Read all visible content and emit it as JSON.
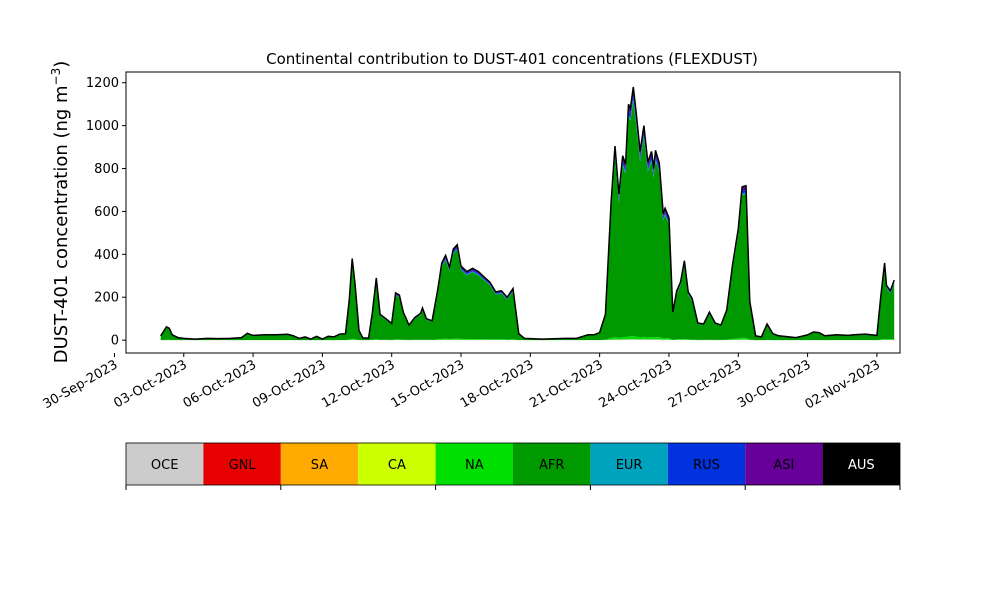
{
  "chart_data": {
    "type": "area",
    "title": "Continental contribution to DUST-401 concentrations (FLEXDUST)",
    "ylabel": "DUST-401 concentration (ng m",
    "ylabel_sup": "−3",
    "ylabel_close": ")",
    "xlabel": "",
    "ylim": [
      -60,
      1250
    ],
    "xlim": [
      "2023-09-30T12:00",
      "2023-11-03T00:00"
    ],
    "yticks": [
      0,
      200,
      400,
      600,
      800,
      1000,
      1200
    ],
    "xticks": [
      {
        "date": "2023-09-30",
        "label": "30-Sep-2023"
      },
      {
        "date": "2023-10-03",
        "label": "03-Oct-2023"
      },
      {
        "date": "2023-10-06",
        "label": "06-Oct-2023"
      },
      {
        "date": "2023-10-09",
        "label": "09-Oct-2023"
      },
      {
        "date": "2023-10-12",
        "label": "12-Oct-2023"
      },
      {
        "date": "2023-10-15",
        "label": "15-Oct-2023"
      },
      {
        "date": "2023-10-18",
        "label": "18-Oct-2023"
      },
      {
        "date": "2023-10-21",
        "label": "21-Oct-2023"
      },
      {
        "date": "2023-10-24",
        "label": "24-Oct-2023"
      },
      {
        "date": "2023-10-27",
        "label": "27-Oct-2023"
      },
      {
        "date": "2023-10-30",
        "label": "30-Oct-2023"
      },
      {
        "date": "2023-11-02",
        "label": "02-Nov-2023"
      }
    ],
    "total_line_color": "#000000",
    "series": [
      {
        "name": "OCE",
        "color": "#cccccc",
        "text_color": "#000000"
      },
      {
        "name": "GNL",
        "color": "#e60000",
        "text_color": "#000000"
      },
      {
        "name": "SA",
        "color": "#ffaa00",
        "text_color": "#000000"
      },
      {
        "name": "CA",
        "color": "#ccff00",
        "text_color": "#000000"
      },
      {
        "name": "NA",
        "color": "#00e000",
        "text_color": "#000000"
      },
      {
        "name": "AFR",
        "color": "#009900",
        "text_color": "#000000"
      },
      {
        "name": "EUR",
        "color": "#00a3bd",
        "text_color": "#000000"
      },
      {
        "name": "RUS",
        "color": "#0033dd",
        "text_color": "#000000"
      },
      {
        "name": "ASI",
        "color": "#660099",
        "text_color": "#000000"
      },
      {
        "name": "AUS",
        "color": "#000000",
        "text_color": "#ffffff"
      }
    ],
    "total": [
      [
        "2023-10-02T00:00",
        20
      ],
      [
        "2023-10-02T03:00",
        40
      ],
      [
        "2023-10-02T06:00",
        62
      ],
      [
        "2023-10-02T09:00",
        55
      ],
      [
        "2023-10-02T12:00",
        25
      ],
      [
        "2023-10-02T18:00",
        12
      ],
      [
        "2023-10-03T00:00",
        8
      ],
      [
        "2023-10-03T12:00",
        5
      ],
      [
        "2023-10-04T00:00",
        8
      ],
      [
        "2023-10-04T12:00",
        7
      ],
      [
        "2023-10-05T00:00",
        8
      ],
      [
        "2023-10-05T12:00",
        12
      ],
      [
        "2023-10-05T18:00",
        32
      ],
      [
        "2023-10-06T00:00",
        22
      ],
      [
        "2023-10-06T12:00",
        25
      ],
      [
        "2023-10-07T00:00",
        25
      ],
      [
        "2023-10-07T12:00",
        27
      ],
      [
        "2023-10-07T18:00",
        20
      ],
      [
        "2023-10-08T00:00",
        8
      ],
      [
        "2023-10-08T06:00",
        15
      ],
      [
        "2023-10-08T12:00",
        5
      ],
      [
        "2023-10-08T18:00",
        18
      ],
      [
        "2023-10-09T00:00",
        5
      ],
      [
        "2023-10-09T06:00",
        18
      ],
      [
        "2023-10-09T12:00",
        15
      ],
      [
        "2023-10-09T18:00",
        28
      ],
      [
        "2023-10-10T00:00",
        30
      ],
      [
        "2023-10-10T04:00",
        190
      ],
      [
        "2023-10-10T07:00",
        380
      ],
      [
        "2023-10-10T10:00",
        260
      ],
      [
        "2023-10-10T14:00",
        45
      ],
      [
        "2023-10-10T18:00",
        10
      ],
      [
        "2023-10-11T00:00",
        10
      ],
      [
        "2023-10-11T04:00",
        130
      ],
      [
        "2023-10-11T08:00",
        290
      ],
      [
        "2023-10-11T12:00",
        120
      ],
      [
        "2023-10-11T18:00",
        100
      ],
      [
        "2023-10-12T00:00",
        78
      ],
      [
        "2023-10-12T04:00",
        220
      ],
      [
        "2023-10-12T08:00",
        210
      ],
      [
        "2023-10-12T12:00",
        130
      ],
      [
        "2023-10-12T18:00",
        70
      ],
      [
        "2023-10-13T00:00",
        105
      ],
      [
        "2023-10-13T06:00",
        125
      ],
      [
        "2023-10-13T08:00",
        150
      ],
      [
        "2023-10-13T12:00",
        100
      ],
      [
        "2023-10-13T18:00",
        90
      ],
      [
        "2023-10-14T00:00",
        240
      ],
      [
        "2023-10-14T04:00",
        360
      ],
      [
        "2023-10-14T08:00",
        395
      ],
      [
        "2023-10-14T12:00",
        340
      ],
      [
        "2023-10-14T16:00",
        425
      ],
      [
        "2023-10-14T20:00",
        445
      ],
      [
        "2023-10-15T00:00",
        345
      ],
      [
        "2023-10-15T06:00",
        320
      ],
      [
        "2023-10-15T12:00",
        335
      ],
      [
        "2023-10-15T18:00",
        320
      ],
      [
        "2023-10-16T00:00",
        295
      ],
      [
        "2023-10-16T06:00",
        270
      ],
      [
        "2023-10-16T12:00",
        225
      ],
      [
        "2023-10-16T18:00",
        230
      ],
      [
        "2023-10-17T00:00",
        200
      ],
      [
        "2023-10-17T06:00",
        240
      ],
      [
        "2023-10-17T12:00",
        30
      ],
      [
        "2023-10-17T18:00",
        8
      ],
      [
        "2023-10-18T12:00",
        5
      ],
      [
        "2023-10-19T12:00",
        8
      ],
      [
        "2023-10-20T00:00",
        8
      ],
      [
        "2023-10-20T12:00",
        25
      ],
      [
        "2023-10-20T18:00",
        25
      ],
      [
        "2023-10-21T00:00",
        35
      ],
      [
        "2023-10-21T06:00",
        120
      ],
      [
        "2023-10-21T12:00",
        650
      ],
      [
        "2023-10-21T16:00",
        905
      ],
      [
        "2023-10-21T20:00",
        680
      ],
      [
        "2023-10-22T00:00",
        860
      ],
      [
        "2023-10-22T03:00",
        820
      ],
      [
        "2023-10-22T06:00",
        1100
      ],
      [
        "2023-10-22T08:00",
        1080
      ],
      [
        "2023-10-22T11:00",
        1180
      ],
      [
        "2023-10-22T14:00",
        1060
      ],
      [
        "2023-10-22T18:00",
        880
      ],
      [
        "2023-10-22T22:00",
        1000
      ],
      [
        "2023-10-23T02:00",
        830
      ],
      [
        "2023-10-23T06:00",
        880
      ],
      [
        "2023-10-23T08:00",
        800
      ],
      [
        "2023-10-23T10:00",
        885
      ],
      [
        "2023-10-23T14:00",
        825
      ],
      [
        "2023-10-23T18:00",
        590
      ],
      [
        "2023-10-23T20:00",
        615
      ],
      [
        "2023-10-24T00:00",
        570
      ],
      [
        "2023-10-24T04:00",
        130
      ],
      [
        "2023-10-24T08:00",
        230
      ],
      [
        "2023-10-24T12:00",
        270
      ],
      [
        "2023-10-24T16:00",
        370
      ],
      [
        "2023-10-24T20:00",
        225
      ],
      [
        "2023-10-25T00:00",
        195
      ],
      [
        "2023-10-25T06:00",
        80
      ],
      [
        "2023-10-25T12:00",
        75
      ],
      [
        "2023-10-25T18:00",
        130
      ],
      [
        "2023-10-26T00:00",
        80
      ],
      [
        "2023-10-26T06:00",
        70
      ],
      [
        "2023-10-26T12:00",
        140
      ],
      [
        "2023-10-26T18:00",
        350
      ],
      [
        "2023-10-27T00:00",
        520
      ],
      [
        "2023-10-27T04:00",
        715
      ],
      [
        "2023-10-27T08:00",
        720
      ],
      [
        "2023-10-27T12:00",
        180
      ],
      [
        "2023-10-27T18:00",
        20
      ],
      [
        "2023-10-28T00:00",
        15
      ],
      [
        "2023-10-28T06:00",
        75
      ],
      [
        "2023-10-28T12:00",
        30
      ],
      [
        "2023-10-28T18:00",
        20
      ],
      [
        "2023-10-29T12:00",
        12
      ],
      [
        "2023-10-30T00:00",
        25
      ],
      [
        "2023-10-30T06:00",
        38
      ],
      [
        "2023-10-30T12:00",
        35
      ],
      [
        "2023-10-30T18:00",
        20
      ],
      [
        "2023-10-31T06:00",
        25
      ],
      [
        "2023-10-31T18:00",
        22
      ],
      [
        "2023-11-01T00:00",
        25
      ],
      [
        "2023-11-01T12:00",
        28
      ],
      [
        "2023-11-01T18:00",
        25
      ],
      [
        "2023-11-02T00:00",
        22
      ],
      [
        "2023-11-02T04:00",
        200
      ],
      [
        "2023-11-02T08:00",
        360
      ],
      [
        "2023-11-02T10:00",
        255
      ],
      [
        "2023-11-02T14:00",
        230
      ],
      [
        "2023-11-02T18:00",
        280
      ]
    ]
  }
}
